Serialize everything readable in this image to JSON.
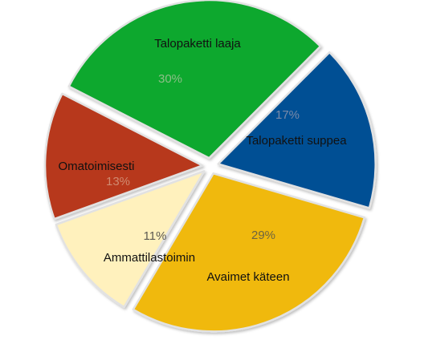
{
  "chart_data": {
    "type": "pie",
    "title": "",
    "slices": [
      {
        "label": "Talopaketti suppea",
        "value": 17,
        "value_label": "17%",
        "color": "#064f94",
        "pct_color": "#7a8aa8"
      },
      {
        "label": "Avaimet käteen",
        "value": 29,
        "value_label": "29%",
        "color": "#f0b90c",
        "pct_color": "#6e6440"
      },
      {
        "label": "Ammattilastoimin",
        "value": 11,
        "value_label": "11%",
        "color": "#fff1bd",
        "pct_color": "#5c5a52"
      },
      {
        "label": "Omatoimisesti",
        "value": 13,
        "value_label": "13%",
        "color": "#b7381c",
        "pct_color": "#d08a70"
      },
      {
        "label": "Talopaketti laaja",
        "value": 30,
        "value_label": "30%",
        "color": "#0fa82e",
        "pct_color": "#8dbf88"
      }
    ],
    "legend": "none",
    "labels": "on-slices"
  }
}
